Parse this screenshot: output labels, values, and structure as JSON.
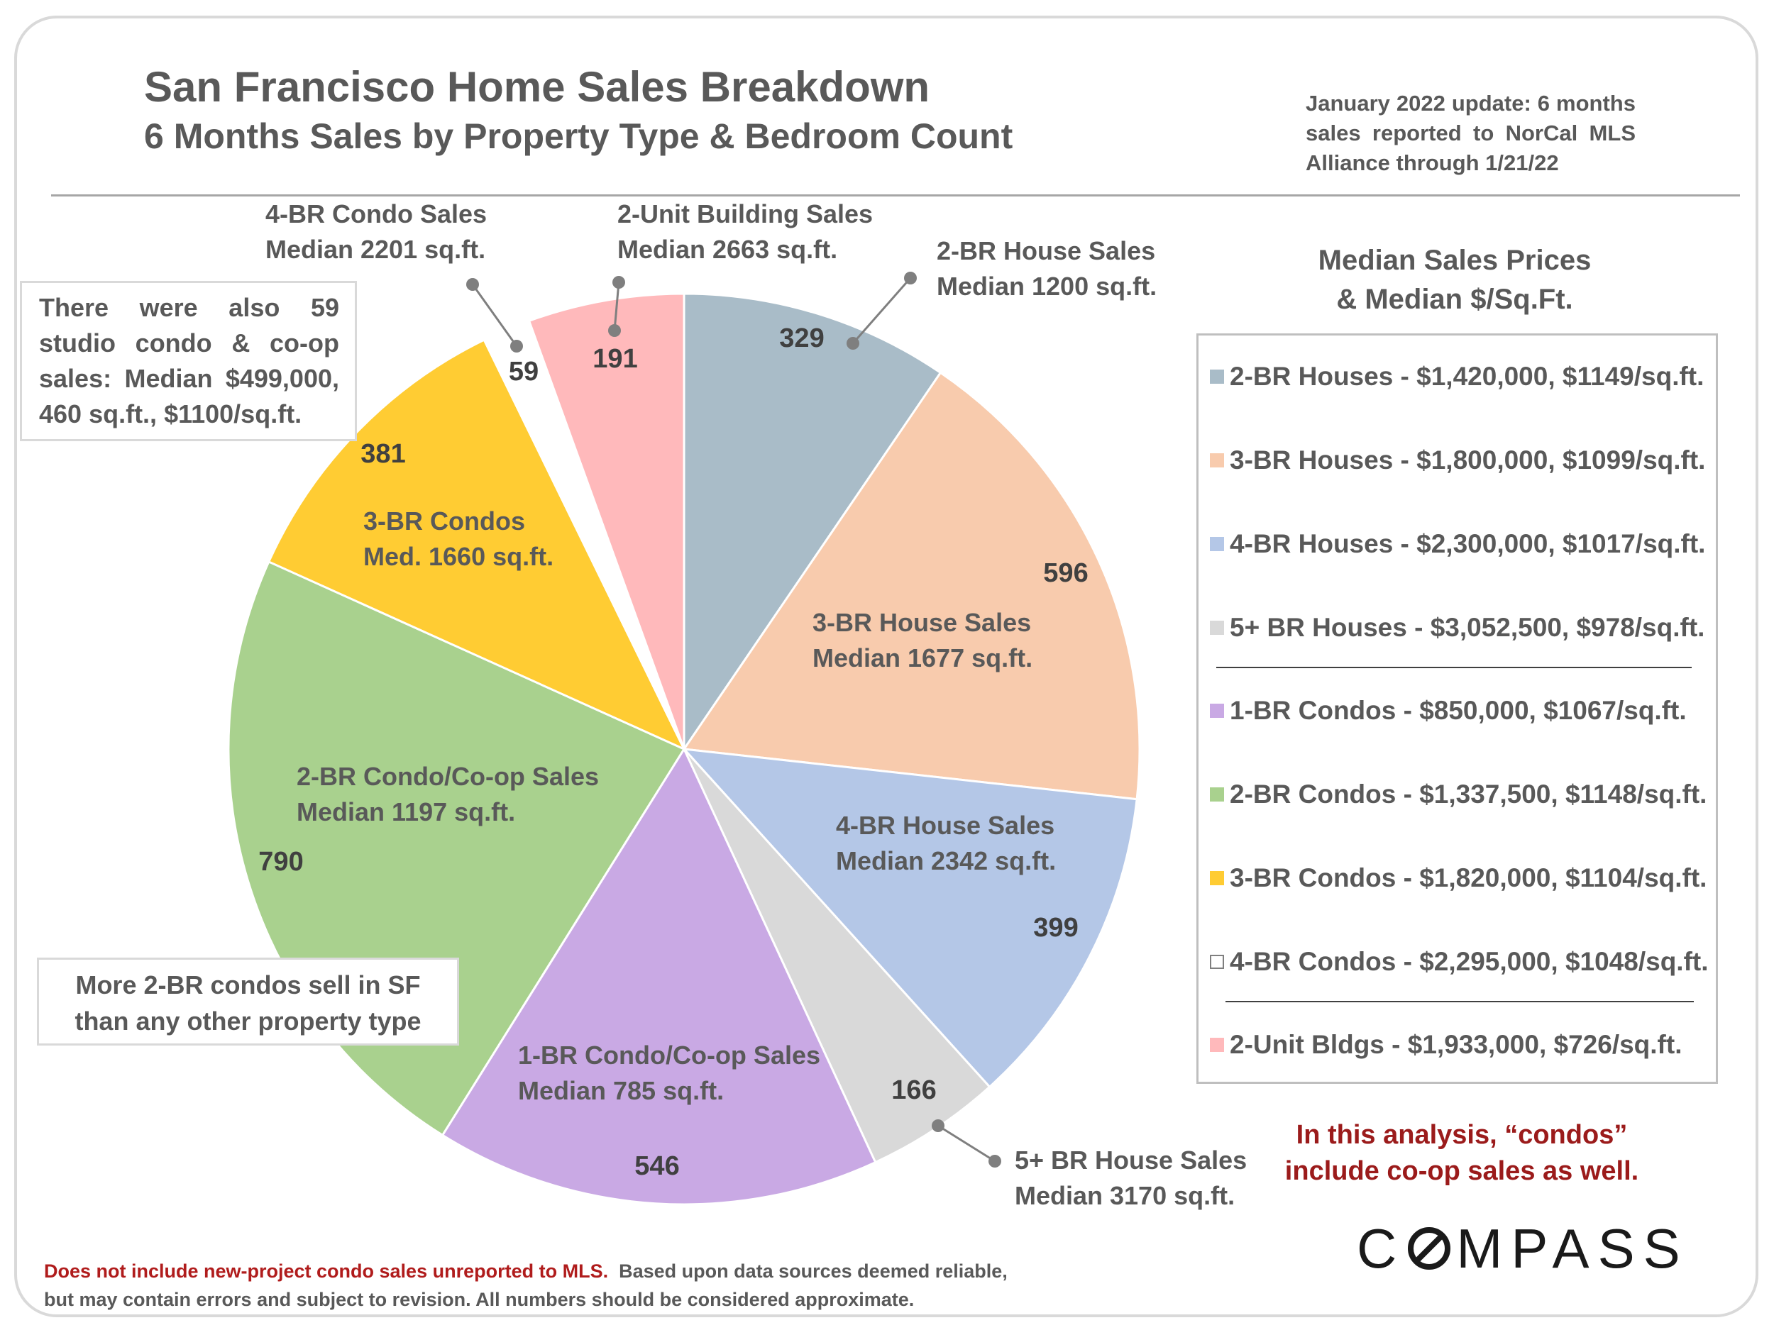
{
  "header": {
    "title": "San Francisco Home Sales Breakdown",
    "subtitle": "6 Months Sales by Property Type & Bedroom Count",
    "update_note": "January 2022 update: 6 months sales reported to NorCal MLS Alliance through 1/21/22"
  },
  "studio_note": "There were also 59 studio condo & co-op sales: Median $499,000, 460 sq.ft., $1100/sq.ft.",
  "two_br_note": {
    "line1": "More 2-BR condos sell in SF",
    "line2": "than any other property type"
  },
  "legend": {
    "title_line1": "Median Sales Prices",
    "title_line2": "& Median $/Sq.Ft.",
    "items": [
      {
        "text": "2-BR Houses - $1,420,000, $1149/sq.ft.",
        "color": "#a9bcc8"
      },
      {
        "text": "3-BR Houses - $1,800,000, $1099/sq.ft.",
        "color": "#f8cbad"
      },
      {
        "text": "4-BR Houses - $2,300,000, $1017/sq.ft.",
        "color": "#b4c7e7"
      },
      {
        "text": "5+ BR Houses - $3,052,500, $978/sq.ft.",
        "color": "#d9d9d9"
      },
      {
        "text": "1-BR Condos - $850,000, $1067/sq.ft.",
        "color": "#c9a9e4"
      },
      {
        "text": "2-BR Condos - $1,337,500, $1148/sq.ft.",
        "color": "#a9d18e"
      },
      {
        "text": "3-BR Condos - $1,820,000, $1104/sq.ft.",
        "color": "#ffcc33"
      },
      {
        "text": "4-BR Condos - $2,295,000, $1048/sq.ft.",
        "color": "#ffffff"
      },
      {
        "text": "2-Unit Bldgs - $1,933,000, $726/sq.ft.",
        "color": "#ffb9bb"
      }
    ]
  },
  "condos_note": {
    "line1": "In this analysis, “condos”",
    "line2": "include co-op sales as well."
  },
  "logo_text": "COMPASS",
  "disclaimer": {
    "red": "Does not include new-project condo sales unreported to MLS.",
    "rest": "Based upon data sources deemed reliable, but may contain errors and subject to revision. All numbers should be considered approximate."
  },
  "chart_data": {
    "type": "pie",
    "title": "San Francisco Home Sales Breakdown",
    "subtitle": "6 Months Sales by Property Type & Bedroom Count",
    "start": "12 o'clock, clockwise",
    "slices": [
      {
        "category": "2-BR House Sales",
        "value": 329,
        "label_lines": [
          "2-BR House Sales",
          "Median 1200 sq.ft."
        ],
        "color": "#a9bcc8"
      },
      {
        "category": "3-BR House Sales",
        "value": 596,
        "label_lines": [
          "3-BR House Sales",
          "Median 1677 sq.ft."
        ],
        "color": "#f8cbad"
      },
      {
        "category": "4-BR House Sales",
        "value": 399,
        "label_lines": [
          "4-BR House Sales",
          "Median 2342 sq.ft."
        ],
        "color": "#b4c7e7"
      },
      {
        "category": "5+ BR House Sales",
        "value": 166,
        "label_lines": [
          "5+ BR House Sales",
          "Median 3170 sq.ft."
        ],
        "color": "#d9d9d9"
      },
      {
        "category": "1-BR Condo/Co-op Sales",
        "value": 546,
        "label_lines": [
          "1-BR Condo/Co-op Sales",
          "Median 785 sq.ft."
        ],
        "color": "#c9a9e4"
      },
      {
        "category": "2-BR Condo/Co-op Sales",
        "value": 790,
        "label_lines": [
          "2-BR Condo/Co-op Sales",
          "Median 1197 sq.ft."
        ],
        "color": "#a9d18e"
      },
      {
        "category": "3-BR Condos",
        "value": 381,
        "label_lines": [
          "3-BR Condos",
          "Med. 1660 sq.ft."
        ],
        "color": "#ffcc33"
      },
      {
        "category": "4-BR Condo Sales",
        "value": 59,
        "label_lines": [
          "4-BR Condo Sales",
          "Median 2201 sq.ft."
        ],
        "color": "#ffffff"
      },
      {
        "category": "2-Unit Building Sales",
        "value": 191,
        "label_lines": [
          "2-Unit Building Sales",
          "Median 2663 sq.ft."
        ],
        "color": "#ffb9bb"
      }
    ]
  }
}
